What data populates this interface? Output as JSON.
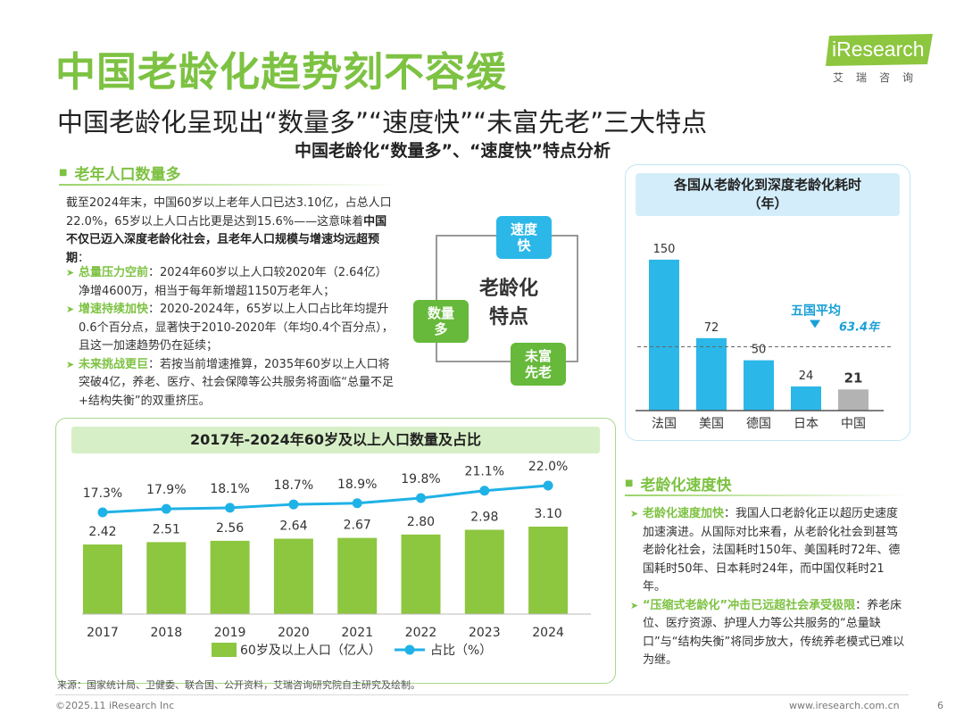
{
  "header": {
    "title": "中国老龄化趋势刻不容缓",
    "subtitle": "中国老龄化呈现出“数量多”“速度快”“未富先老”三大特点",
    "section_title": "中国老龄化“数量多”、“速度快”特点分析",
    "logo": {
      "text": "iResearch",
      "sub": "艾瑞咨询"
    }
  },
  "left_section": {
    "heading": "老年人口数量多",
    "intro_plain": "截至2024年末，中国60岁以上老年人口已达3.10亿，占总人口22.0%，65岁以上人口占比更是达到15.6%——这意味着",
    "intro_bold": "中国不仅已迈入深度老龄化社会，且老年人口规模与增速均远超预期",
    "intro_end": "：",
    "bullets": [
      {
        "key": "总量压力空前",
        "text": "：2024年60岁以上人口较2020年（2.64亿）净增4600万，相当于每年新增超1150万老年人；"
      },
      {
        "key": "增速持续加快",
        "text": "：2020-2024年，65岁以上人口占比年均提升0.6个百分点，显著快于2010-2020年（年均0.4个百分点），且这一加速趋势仍在延续；"
      },
      {
        "key": "未来挑战更巨",
        "text": "：若按当前增速推算，2035年60岁以上人口将突破4亿，养老、医疗、社会保障等公共服务将面临“总量不足+结构失衡”的双重挤压。"
      }
    ]
  },
  "diagram": {
    "center": "老龄化特点",
    "speed": "速度快",
    "quantity": "数量多",
    "poor": "未富先老"
  },
  "chart_data": [
    {
      "type": "bar",
      "title": "各国从老龄化到深度老龄化耗时（年）",
      "categories": [
        "法国",
        "美国",
        "德国",
        "日本",
        "中国"
      ],
      "values": [
        150,
        72,
        50,
        24,
        21
      ],
      "bar_colors": [
        "#2bb7e8",
        "#2bb7e8",
        "#2bb7e8",
        "#2bb7e8",
        "#b3b3b3"
      ],
      "reference": {
        "label": "五国平均",
        "value": 63.4,
        "value_label": "63.4年"
      },
      "ylim": [
        0,
        165
      ]
    },
    {
      "type": "bar+line",
      "title": "2017年-2024年60岁及以上人口数量及占比",
      "categories": [
        "2017",
        "2018",
        "2019",
        "2020",
        "2021",
        "2022",
        "2023",
        "2024"
      ],
      "series": [
        {
          "name": "60岁及以上人口（亿人）",
          "type": "bar",
          "values": [
            2.42,
            2.51,
            2.56,
            2.64,
            2.67,
            2.8,
            2.98,
            3.1
          ],
          "labels": [
            "2.42",
            "2.51",
            "2.56",
            "2.64",
            "2.67",
            "2.80",
            "2.98",
            "3.10"
          ],
          "color": "#8dc63f"
        },
        {
          "name": "占比（%）",
          "type": "line",
          "values": [
            17.3,
            17.9,
            18.1,
            18.7,
            18.9,
            19.8,
            21.1,
            22.0
          ],
          "labels": [
            "17.3%",
            "17.9%",
            "18.1%",
            "18.7%",
            "18.9%",
            "19.8%",
            "21.1%",
            "22.0%"
          ],
          "color": "#1fb2e6"
        }
      ]
    }
  ],
  "speed_section": {
    "heading": "老龄化速度快",
    "bullets": [
      {
        "key": "老龄化速度加快",
        "text": "：我国人口老龄化正以超历史速度加速演进。从国际对比来看，从老龄化社会到甚笃老龄化社会，法国耗时150年、美国耗时72年、德国耗时50年、日本耗时24年，而中国仅耗时21年。"
      },
      {
        "key": "“压缩式老龄化”冲击已远超社会承受极限",
        "text": "：养老床位、医疗资源、护理人力等公共服务的“总量缺口”与“结构失衡”将同步放大，传统养老模式已难以为继。"
      }
    ]
  },
  "footer": {
    "source": "来源：国家统计局、卫健委、联合国、公开资料，艾瑞咨询研究院自主研究及绘制。",
    "copyright": "©2025.11 iResearch Inc",
    "site": "www.iresearch.com.cn",
    "page": "6"
  },
  "colors": {
    "brand_green": "#7dc242",
    "accent_blue": "#2bb7e8",
    "bar_green": "#8dc63f"
  }
}
